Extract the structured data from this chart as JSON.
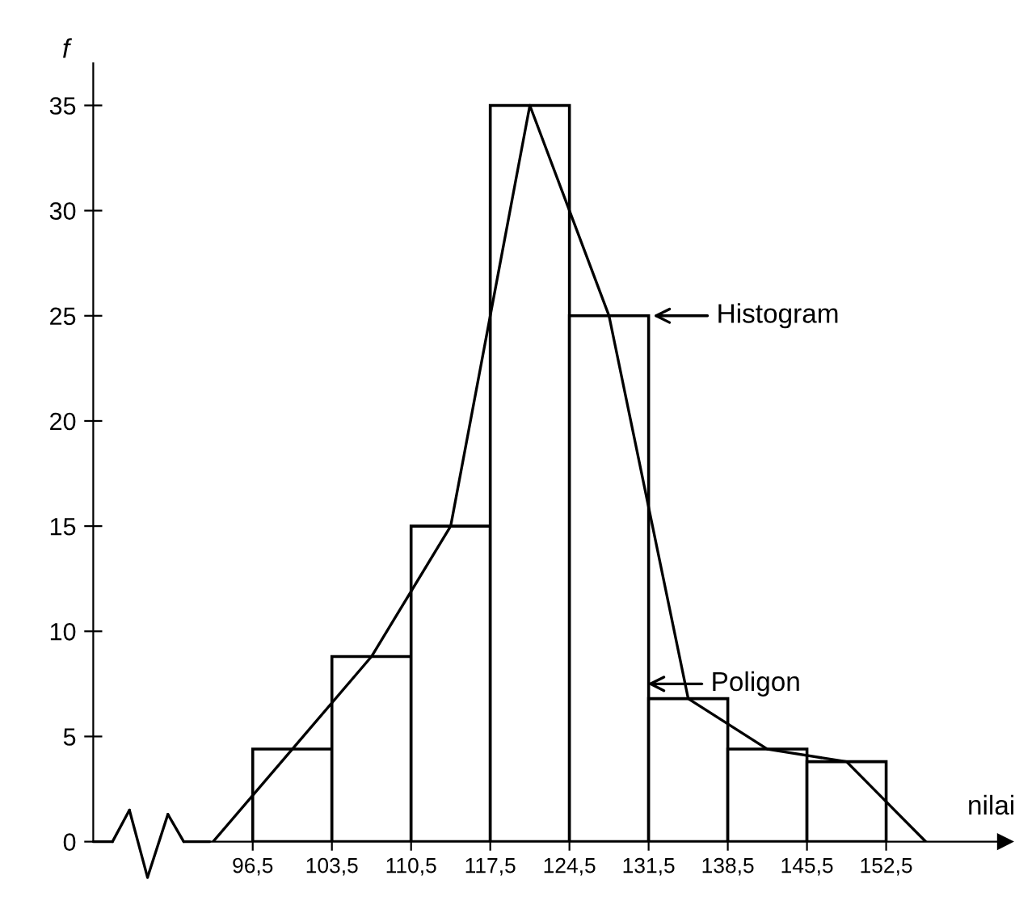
{
  "chart_data": {
    "type": "histogram",
    "xlabel": "nilai",
    "ylabel": "f",
    "bins": [
      96.5,
      103.5,
      110.5,
      117.5,
      124.5,
      131.5,
      138.5,
      145.5,
      152.5
    ],
    "values": [
      4.4,
      8.8,
      15,
      35,
      25,
      6.8,
      4.4,
      3.8
    ],
    "color": "#ffffff",
    "series": [
      {
        "type": "line",
        "color": "#000000",
        "x": [
          93,
          100,
          107,
          114,
          121,
          128,
          135,
          142,
          149,
          156
        ],
        "values": [
          0,
          4.4,
          8.8,
          15,
          35,
          25,
          6.8,
          4.4,
          3.8,
          0
        ]
      }
    ],
    "xlim": [
      82.4,
      163
    ],
    "ylim": [
      0,
      37
    ],
    "xticks": [
      {
        "value": 96.5,
        "label": "96,5"
      },
      {
        "value": 103.5,
        "label": "103,5"
      },
      {
        "value": 110.5,
        "label": "110,5"
      },
      {
        "value": 117.5,
        "label": "117,5"
      },
      {
        "value": 124.5,
        "label": "124,5"
      },
      {
        "value": 131.5,
        "label": "131,5"
      },
      {
        "value": 138.5,
        "label": "138,5"
      },
      {
        "value": 145.5,
        "label": "145,5"
      },
      {
        "value": 152.5,
        "label": "152,5"
      }
    ],
    "yticks": [
      0,
      5,
      10,
      15,
      20,
      25,
      30,
      35
    ],
    "annotations": [
      {
        "text": "Histogram",
        "x": 131.5,
        "y": 25
      },
      {
        "text": "Poligon",
        "x": 131,
        "y": 7.5
      }
    ],
    "grid": false,
    "legend": false,
    "marker": "none",
    "line_style": "solid"
  }
}
